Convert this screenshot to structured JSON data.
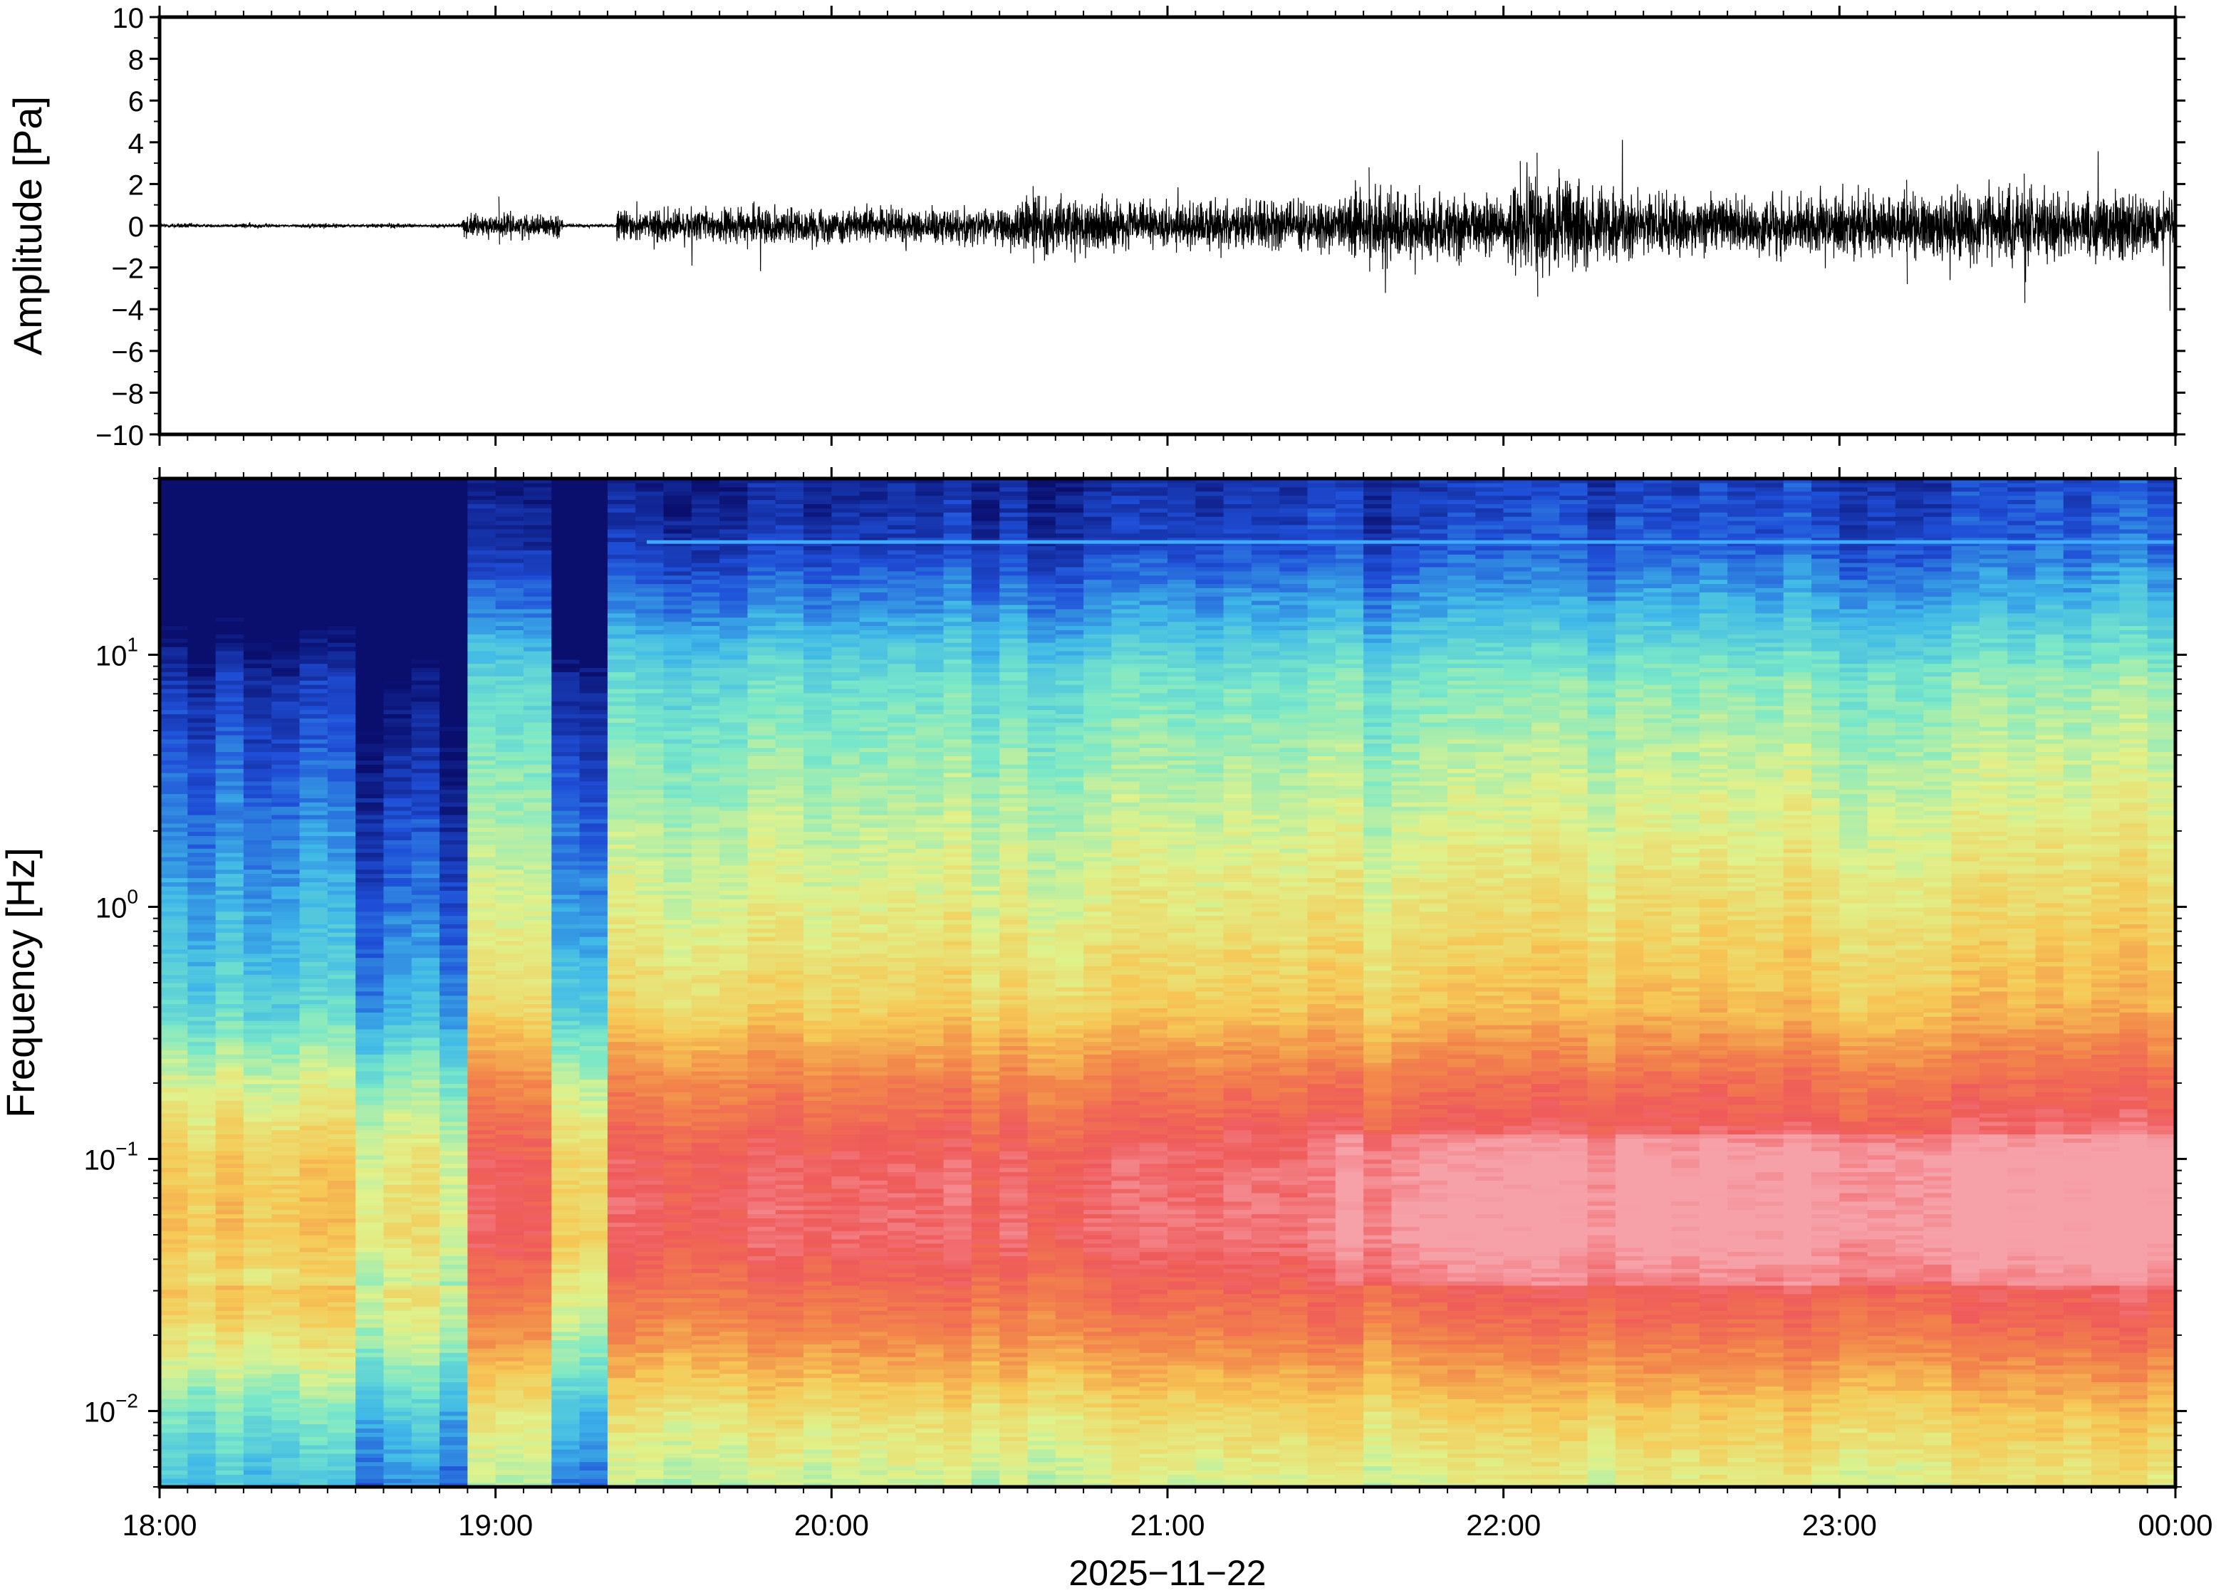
{
  "chart_data": [
    {
      "type": "line",
      "ylabel": "Amplitude [Pa]",
      "ylim": [
        -10,
        10
      ],
      "yticks": [
        "10",
        "8",
        "6",
        "4",
        "2",
        "0",
        "−2",
        "−4",
        "−6",
        "−8",
        "−10"
      ],
      "ytick_values": [
        10,
        8,
        6,
        4,
        2,
        0,
        -2,
        -4,
        -6,
        -8,
        -10
      ],
      "xlim": [
        "18:00",
        "00:00"
      ],
      "envelope": {
        "series": [
          {
            "time_hours": [
              18.0,
              18.9,
              19.0,
              19.2,
              19.34,
              19.5,
              20.0,
              20.5,
              20.6,
              21.0,
              21.5,
              21.6,
              22.0,
              22.1,
              22.5,
              23.0,
              23.5,
              24.0
            ],
            "amplitude_pa": [
              0.15,
              0.3,
              0.9,
              0.6,
              0.9,
              1.1,
              1.1,
              1.2,
              1.8,
              1.4,
              1.7,
              2.4,
              1.8,
              3.3,
              1.8,
              1.9,
              2.2,
              2.0
            ]
          }
        ]
      }
    },
    {
      "type": "heatmap",
      "ylabel": "Frequency [Hz]",
      "xlabel": "2025−11−22",
      "yscale": "log",
      "ylim_hz": [
        0.005,
        50
      ],
      "xticks": [
        "18:00",
        "19:00",
        "20:00",
        "21:00",
        "22:00",
        "23:00",
        "00:00"
      ],
      "yticks": [
        {
          "base": "10",
          "exp": "1",
          "value": 10
        },
        {
          "base": "10",
          "exp": "0",
          "value": 1
        },
        {
          "base": "10",
          "exp": "−1",
          "value": 0.1
        },
        {
          "base": "10",
          "exp": "−2",
          "value": 0.01
        }
      ],
      "colormap": [
        "#0a0f6e",
        "#1f4fd8",
        "#3fb8e8",
        "#7ae8c8",
        "#dff28c",
        "#f6c855",
        "#f2864a",
        "#ef5a5a",
        "#f6a0a8"
      ],
      "features": {
        "quiet_interval_hours": [
          18.6,
          18.9
        ],
        "gap_hours": [
          19.2,
          19.36
        ],
        "persistent_line_hz": 28
      }
    }
  ]
}
